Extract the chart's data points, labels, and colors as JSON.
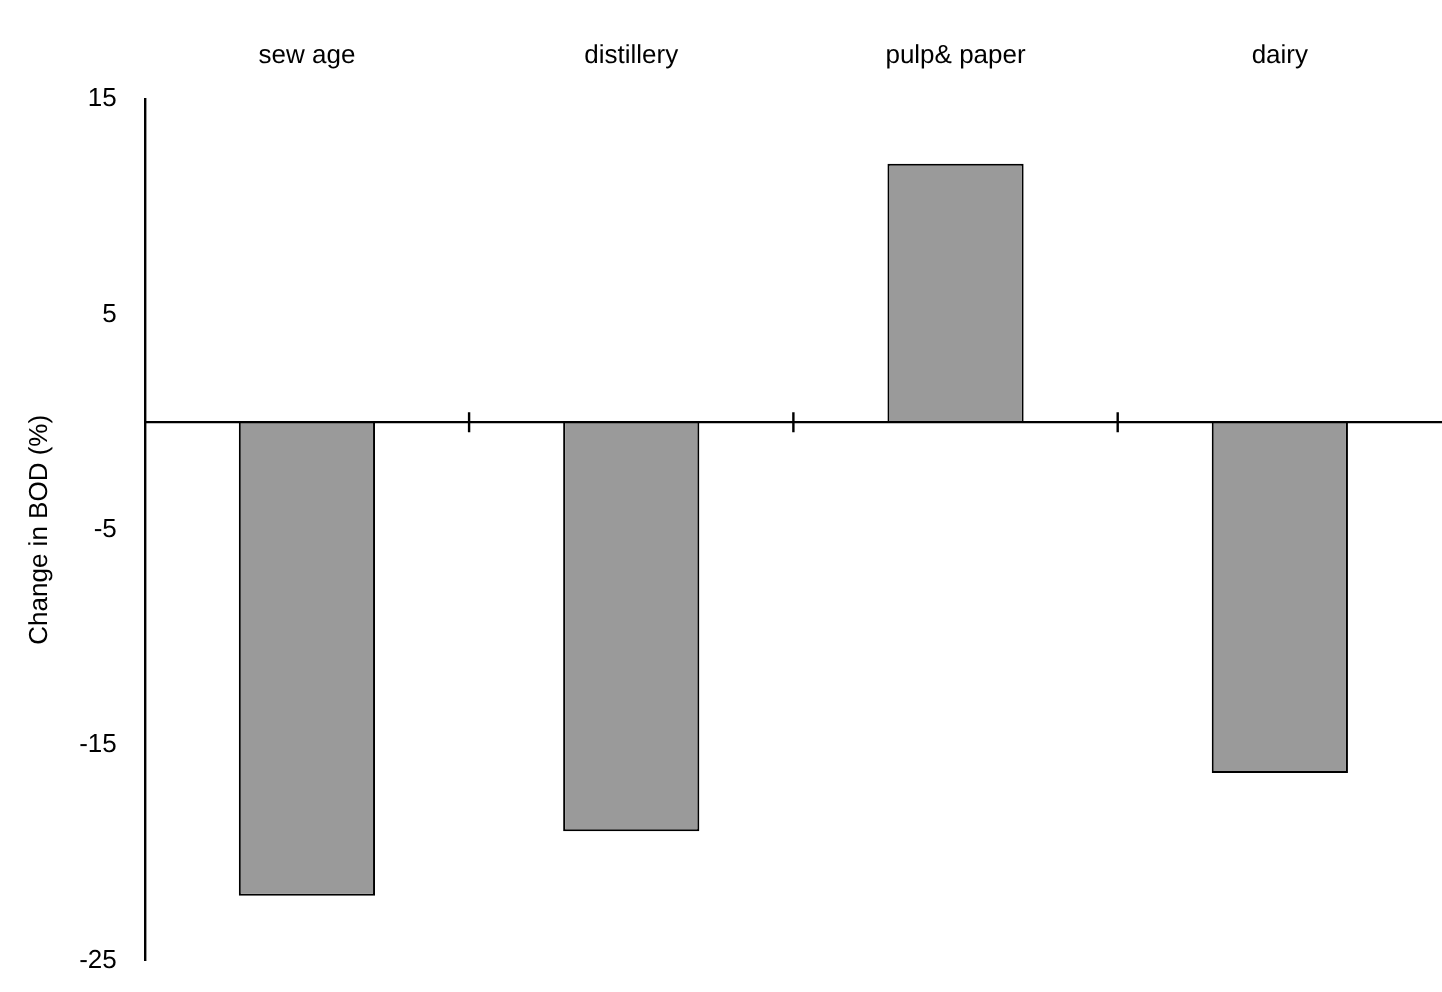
{
  "chart_data": {
    "type": "bar",
    "ylabel": "Change in BOD (%)",
    "categories": [
      "sew age",
      "distillery",
      "pulp& paper",
      "dairy"
    ],
    "values": [
      -22,
      -19,
      12,
      -16.3
    ],
    "color": "#9a9a9a",
    "ylim": [
      -25,
      15
    ],
    "yticks": [
      -25,
      -15,
      -5,
      5,
      15
    ],
    "grid": false,
    "legend": false
  }
}
